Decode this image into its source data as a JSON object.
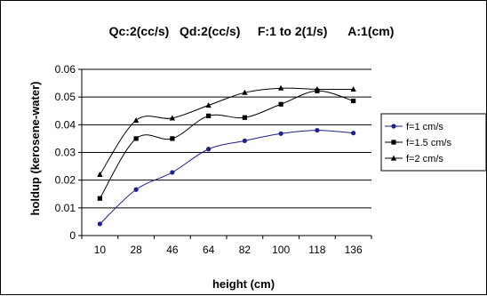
{
  "chart_data": {
    "type": "line",
    "title": "Qc:2(cc/s)   Qd:2(cc/s)     F:1 to 2(1/s)      A:1(cm)",
    "xlabel": "height (cm)",
    "ylabel": "holdup (kerosene-water)",
    "categories": [
      "10",
      "28",
      "46",
      "64",
      "82",
      "100",
      "118",
      "136"
    ],
    "y_ticks": [
      "0",
      "0.01",
      "0.02",
      "0.03",
      "0.04",
      "0.05",
      "0.06"
    ],
    "ylim": [
      0,
      0.06
    ],
    "grid": "horizontal",
    "legend_position": "right",
    "series": [
      {
        "name": "f=1 cm/s",
        "marker": "circle",
        "color": "#1f1f8f",
        "values": [
          0.0042,
          0.0166,
          0.0228,
          0.0312,
          0.0342,
          0.0368,
          0.038,
          0.037
        ]
      },
      {
        "name": "f=1.5 cm/s",
        "marker": "square",
        "color": "#000000",
        "values": [
          0.0134,
          0.035,
          0.035,
          0.0432,
          0.0426,
          0.0474,
          0.0522,
          0.0486
        ]
      },
      {
        "name": "f=2 cm/s",
        "marker": "triangle",
        "color": "#000000",
        "values": [
          0.022,
          0.0416,
          0.0424,
          0.047,
          0.0516,
          0.0532,
          0.0528,
          0.0528
        ]
      }
    ]
  }
}
